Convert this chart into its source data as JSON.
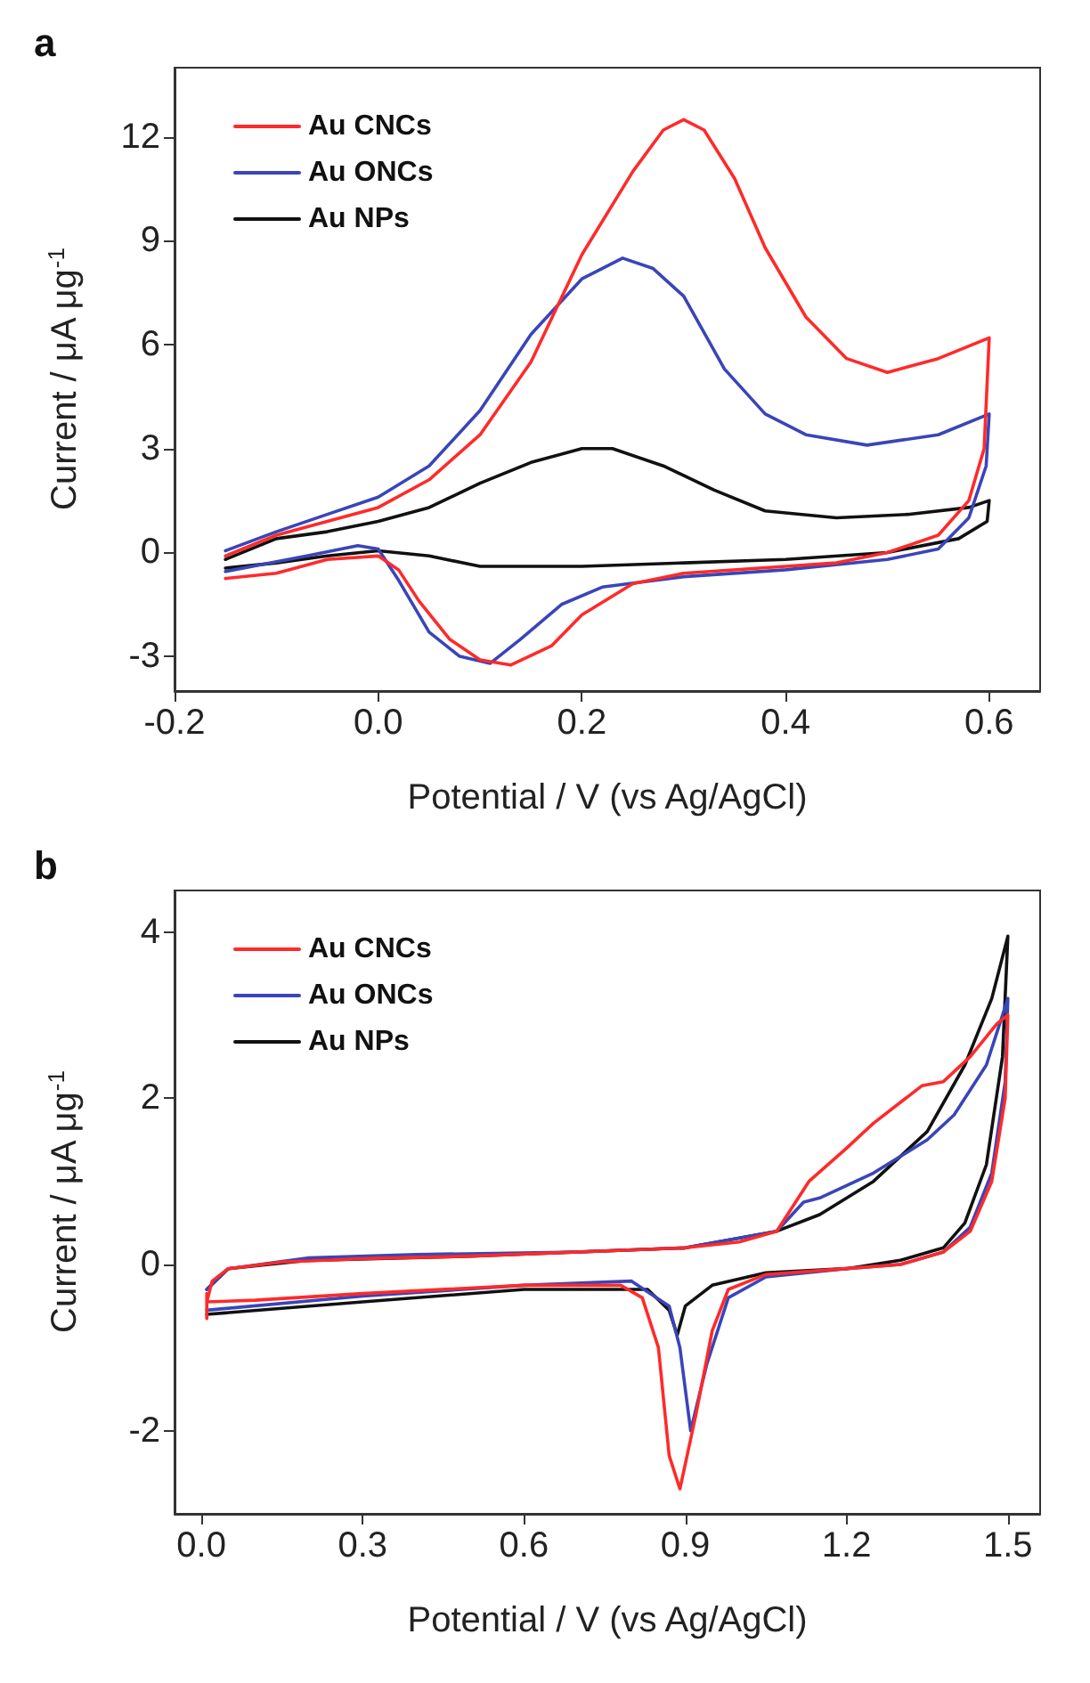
{
  "chart_data": [
    {
      "type": "line",
      "title": "a",
      "xlabel": "Potential / V (vs Ag/AgCl)",
      "ylabel": "Current / μA μg$^{-1}$",
      "xlim": [
        -0.2,
        0.65
      ],
      "xticks": [
        {
          "value": -0.2,
          "label": "-0.2"
        },
        {
          "value": 0,
          "label": "0.0"
        },
        {
          "value": 0.2,
          "label": "0.2"
        },
        {
          "value": 0.4,
          "label": "0.4"
        },
        {
          "value": 0.6,
          "label": "0.6"
        }
      ],
      "ylim": [
        -4,
        14
      ],
      "yticks": [
        -3,
        0,
        3,
        6,
        9,
        12
      ],
      "grid": false,
      "legend": "top left",
      "marker": "none",
      "line_style": "solid",
      "series": [
        {
          "name": "Au CNCs",
          "color": "#ff2a2a",
          "x": [
            -0.15,
            -0.1,
            -0.05,
            0,
            0.05,
            0.1,
            0.15,
            0.2,
            0.25,
            0.28,
            0.3,
            0.32,
            0.35,
            0.38,
            0.42,
            0.46,
            0.5,
            0.55,
            0.6,
            0.595,
            0.58,
            0.55,
            0.5,
            0.45,
            0.4,
            0.3,
            0.25,
            0.2,
            0.17,
            0.13,
            0.1,
            0.07,
            0.04,
            0.02,
            0,
            -0.05,
            -0.1,
            -0.15
          ],
          "values": [
            -0.1,
            0.5,
            0.9,
            1.3,
            2.1,
            3.4,
            5.5,
            8.6,
            11,
            12.2,
            12.5,
            12.2,
            10.8,
            8.8,
            6.8,
            5.6,
            5.2,
            5.6,
            6.2,
            3,
            1.5,
            0.5,
            0,
            -0.3,
            -0.4,
            -0.6,
            -0.9,
            -1.8,
            -2.7,
            -3.25,
            -3.1,
            -2.5,
            -1.4,
            -0.5,
            -0.1,
            -0.2,
            -0.6,
            -0.75
          ]
        },
        {
          "name": "Au ONCs",
          "color": "#3a45b8",
          "x": [
            -0.15,
            -0.1,
            -0.05,
            0,
            0.05,
            0.1,
            0.15,
            0.2,
            0.24,
            0.27,
            0.3,
            0.34,
            0.38,
            0.42,
            0.48,
            0.55,
            0.6,
            0.597,
            0.58,
            0.55,
            0.5,
            0.4,
            0.3,
            0.22,
            0.18,
            0.14,
            0.11,
            0.08,
            0.05,
            0.02,
            0,
            -0.02,
            -0.07,
            -0.15
          ],
          "values": [
            0.05,
            0.6,
            1.1,
            1.6,
            2.5,
            4.1,
            6.3,
            7.9,
            8.5,
            8.2,
            7.4,
            5.3,
            4,
            3.4,
            3.1,
            3.4,
            4,
            2.5,
            1,
            0.1,
            -0.2,
            -0.5,
            -0.7,
            -1,
            -1.5,
            -2.5,
            -3.2,
            -3,
            -2.3,
            -0.8,
            0.1,
            0.2,
            -0.1,
            -0.55
          ]
        },
        {
          "name": "Au NPs",
          "color": "#111111",
          "x": [
            -0.15,
            -0.1,
            -0.05,
            0,
            0.05,
            0.1,
            0.15,
            0.2,
            0.23,
            0.28,
            0.33,
            0.38,
            0.45,
            0.52,
            0.58,
            0.6,
            0.598,
            0.57,
            0.5,
            0.4,
            0.3,
            0.2,
            0.1,
            0.05,
            0,
            -0.05,
            -0.1,
            -0.15
          ],
          "values": [
            -0.2,
            0.4,
            0.6,
            0.9,
            1.3,
            2,
            2.6,
            3,
            3,
            2.5,
            1.8,
            1.2,
            1,
            1.1,
            1.3,
            1.5,
            0.9,
            0.4,
            0,
            -0.2,
            -0.3,
            -0.4,
            -0.4,
            -0.1,
            0.05,
            -0.1,
            -0.3,
            -0.45
          ]
        }
      ]
    },
    {
      "type": "line",
      "title": "b",
      "xlabel": "Potential / V (vs Ag/AgCl)",
      "ylabel": "Current / μA μg$^{-1}$",
      "xlim": [
        -0.05,
        1.56
      ],
      "xticks": [
        {
          "value": 0,
          "label": "0.0"
        },
        {
          "value": 0.3,
          "label": "0.3"
        },
        {
          "value": 0.6,
          "label": "0.6"
        },
        {
          "value": 0.9,
          "label": "0.9"
        },
        {
          "value": 1.2,
          "label": "1.2"
        },
        {
          "value": 1.5,
          "label": "1.5"
        }
      ],
      "ylim": [
        -3,
        4.5
      ],
      "yticks": [
        -2,
        0,
        2,
        4
      ],
      "grid": false,
      "legend": "top left",
      "marker": "none",
      "line_style": "solid",
      "series": [
        {
          "name": "Au CNCs",
          "color": "#ff2a2a",
          "x": [
            0.01,
            0.01,
            0.02,
            0.05,
            0.15,
            0.3,
            0.5,
            0.7,
            0.9,
            1,
            1.07,
            1.1,
            1.13,
            1.2,
            1.25,
            1.3,
            1.34,
            1.38,
            1.43,
            1.48,
            1.5,
            1.495,
            1.47,
            1.43,
            1.38,
            1.3,
            1.2,
            1.05,
            0.98,
            0.95,
            0.92,
            0.89,
            0.87,
            0.85,
            0.82,
            0.78,
            0.6,
            0.3,
            0.1,
            0.01,
            0.01
          ],
          "values": [
            -0.65,
            -0.45,
            -0.2,
            -0.05,
            0.03,
            0.07,
            0.1,
            0.15,
            0.2,
            0.27,
            0.4,
            0.7,
            1,
            1.4,
            1.7,
            1.95,
            2.15,
            2.2,
            2.5,
            2.9,
            3,
            2,
            1,
            0.4,
            0.15,
            0,
            -0.05,
            -0.12,
            -0.3,
            -0.8,
            -1.8,
            -2.7,
            -2.3,
            -1,
            -0.4,
            -0.25,
            -0.25,
            -0.35,
            -0.43,
            -0.45,
            -0.35
          ]
        },
        {
          "name": "Au ONCs",
          "color": "#3a45b8",
          "x": [
            0.01,
            0.05,
            0.2,
            0.4,
            0.7,
            0.9,
            1.07,
            1.12,
            1.15,
            1.25,
            1.35,
            1.4,
            1.46,
            1.5,
            1.495,
            1.47,
            1.43,
            1.38,
            1.3,
            1.2,
            1.05,
            0.98,
            0.94,
            0.91,
            0.89,
            0.87,
            0.8,
            0.6,
            0.3,
            0.01
          ],
          "values": [
            -0.3,
            -0.05,
            0.08,
            0.12,
            0.15,
            0.2,
            0.4,
            0.75,
            0.8,
            1.1,
            1.5,
            1.8,
            2.4,
            3.2,
            2.2,
            1.1,
            0.45,
            0.15,
            0,
            -0.05,
            -0.15,
            -0.4,
            -1.2,
            -2,
            -1,
            -0.5,
            -0.2,
            -0.25,
            -0.38,
            -0.55
          ]
        },
        {
          "name": "Au NPs",
          "color": "#111111",
          "x": [
            0.01,
            0.05,
            0.2,
            0.5,
            0.9,
            1.07,
            1.15,
            1.25,
            1.35,
            1.42,
            1.47,
            1.5,
            1.49,
            1.46,
            1.42,
            1.38,
            1.3,
            1.2,
            1.05,
            0.95,
            0.9,
            0.885,
            0.87,
            0.83,
            0.6,
            0.3,
            0.01
          ],
          "values": [
            -0.3,
            -0.05,
            0.05,
            0.1,
            0.2,
            0.4,
            0.6,
            1,
            1.6,
            2.4,
            3.2,
            3.95,
            2.5,
            1.2,
            0.5,
            0.2,
            0.05,
            -0.05,
            -0.1,
            -0.25,
            -0.5,
            -0.85,
            -0.55,
            -0.3,
            -0.3,
            -0.45,
            -0.6
          ]
        }
      ]
    }
  ]
}
